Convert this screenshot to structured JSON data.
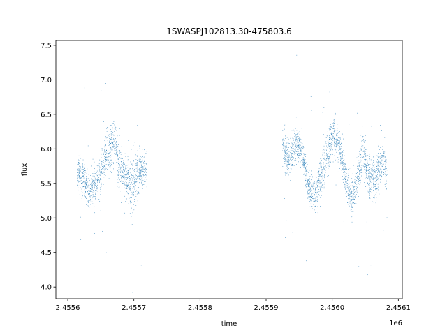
{
  "chart_data": {
    "type": "scatter",
    "title": "1SWASPJ102813.30-475803.6",
    "xlabel": "time",
    "ylabel": "flux",
    "x_offset_label": "1e6",
    "xlim": [
      2455582,
      2456106
    ],
    "ylim": [
      3.83,
      7.57
    ],
    "x_ticks": [
      2455600,
      2455700,
      2455800,
      2455900,
      2456000,
      2456100
    ],
    "x_tick_labels": [
      "2.4556",
      "2.4557",
      "2.4558",
      "2.4559",
      "2.4560",
      "2.4561"
    ],
    "y_ticks": [
      4.0,
      4.5,
      5.0,
      5.5,
      6.0,
      6.5,
      7.0,
      7.5
    ],
    "y_tick_labels": [
      "4.0",
      "4.5",
      "5.0",
      "5.5",
      "6.0",
      "6.5",
      "7.0",
      "7.5"
    ],
    "grid": false,
    "legend": "none",
    "marker_color": "#1f77b4",
    "series": [
      {
        "segments": [
          {
            "x_start": 2455614,
            "x_end": 2455720,
            "profile": [
              [
                2455614,
                5.7,
                0.22
              ],
              [
                2455624,
                5.55,
                0.2
              ],
              [
                2455632,
                5.35,
                0.22
              ],
              [
                2455640,
                5.45,
                0.22
              ],
              [
                2455648,
                5.55,
                0.22
              ],
              [
                2455656,
                5.85,
                0.25
              ],
              [
                2455664,
                6.0,
                0.28
              ],
              [
                2455670,
                6.2,
                0.3
              ],
              [
                2455676,
                5.8,
                0.28
              ],
              [
                2455684,
                5.65,
                0.22
              ],
              [
                2455692,
                5.55,
                0.25
              ],
              [
                2455698,
                5.45,
                0.4
              ],
              [
                2455704,
                5.6,
                0.25
              ],
              [
                2455712,
                5.7,
                0.2
              ],
              [
                2455720,
                5.7,
                0.2
              ]
            ]
          },
          {
            "x_start": 2455925,
            "x_end": 2456083,
            "profile": [
              [
                2455925,
                6.05,
                0.22
              ],
              [
                2455935,
                5.8,
                0.25
              ],
              [
                2455945,
                6.1,
                0.2
              ],
              [
                2455955,
                5.95,
                0.15
              ],
              [
                2455965,
                5.4,
                0.2
              ],
              [
                2455975,
                5.35,
                0.22
              ],
              [
                2455985,
                5.65,
                0.25
              ],
              [
                2455995,
                6.0,
                0.25
              ],
              [
                2456003,
                6.2,
                0.25
              ],
              [
                2456013,
                5.95,
                0.22
              ],
              [
                2456020,
                5.55,
                0.22
              ],
              [
                2456028,
                5.3,
                0.22
              ],
              [
                2456036,
                5.45,
                0.22
              ],
              [
                2456046,
                5.95,
                0.3
              ],
              [
                2456056,
                5.6,
                0.25
              ],
              [
                2456066,
                5.55,
                0.25
              ],
              [
                2456076,
                5.85,
                0.28
              ],
              [
                2456083,
                5.6,
                0.25
              ]
            ]
          }
        ]
      }
    ]
  }
}
